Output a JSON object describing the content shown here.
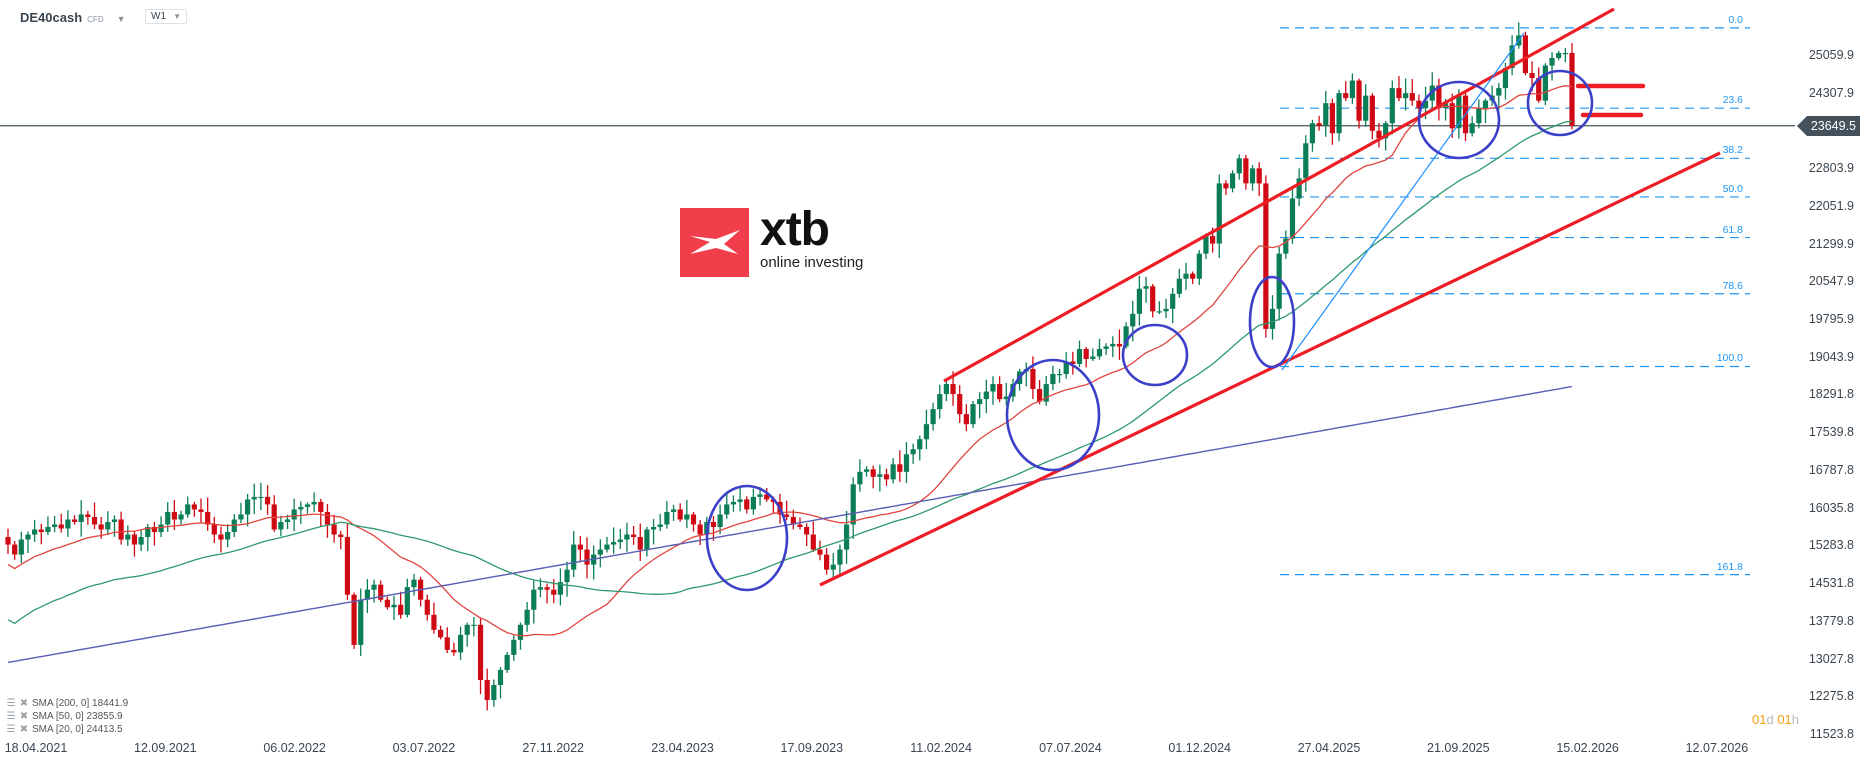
{
  "header": {
    "symbol": "DE40cash",
    "symbol_type": "CFD",
    "timeframe": "W1"
  },
  "logo": {
    "brand": "xtb",
    "tagline": "online investing"
  },
  "current_price": "23649.5",
  "countdown": {
    "days": "01",
    "days_unit": "d",
    "hours": "01",
    "hours_unit": "h"
  },
  "legend": [
    {
      "label": "SMA [200,  0] 18441.9"
    },
    {
      "label": "SMA [50,  0] 23855.9"
    },
    {
      "label": "SMA [20,  0] 24413.5"
    }
  ],
  "colors": {
    "bull": "#0b7e57",
    "bear": "#cf0a14",
    "sma20": "#e0453f",
    "sma50": "#2e9a6c",
    "sma200": "#5a5fb5",
    "trend": "#ee1c25",
    "ellipse": "#3c3fc8",
    "fib": "#2196f3",
    "fib_trend": "#1e90ff",
    "price_line": "#45525c"
  },
  "chart_data": {
    "type": "candlestick",
    "title": "DE40cash CFD W1",
    "xlabel": "",
    "ylabel": "",
    "ylim": [
      11523.8,
      25811.9
    ],
    "y_ticks": [
      "25059.9",
      "24307.9",
      "23649.5",
      "22803.9",
      "22051.9",
      "21299.9",
      "20547.9",
      "19795.9",
      "19043.9",
      "18291.8",
      "17539.8",
      "16787.8",
      "16035.8",
      "15283.8",
      "14531.8",
      "13779.8",
      "13027.8",
      "12275.8",
      "11523.8"
    ],
    "x_ticks": [
      "18.04.2021",
      "12.09.2021",
      "06.02.2022",
      "03.07.2022",
      "27.11.2022",
      "23.04.2023",
      "17.09.2023",
      "11.02.2024",
      "07.07.2024",
      "01.12.2024",
      "27.04.2025",
      "21.09.2025",
      "15.02.2026",
      "12.07.2026"
    ],
    "grid": false,
    "fibonacci": {
      "levels": [
        {
          "label": "0.0",
          "price": 25600
        },
        {
          "label": "23.6",
          "price": 24000
        },
        {
          "label": "38.2",
          "price": 23000
        },
        {
          "label": "50.0",
          "price": 22230
        },
        {
          "label": "61.8",
          "price": 21420
        },
        {
          "label": "78.6",
          "price": 20300
        },
        {
          "label": "100.0",
          "price": 18850
        },
        {
          "label": "161.8",
          "price": 14700
        }
      ]
    },
    "closes": [
      15300,
      15100,
      15400,
      15500,
      15600,
      15550,
      15650,
      15700,
      15620,
      15800,
      15750,
      15900,
      15850,
      15700,
      15600,
      15750,
      15800,
      15400,
      15500,
      15300,
      15450,
      15650,
      15550,
      15700,
      15950,
      15800,
      15900,
      16100,
      16000,
      15950,
      15700,
      15500,
      15400,
      15550,
      15800,
      15900,
      16200,
      16250,
      16250,
      16100,
      15600,
      15750,
      15800,
      16000,
      16050,
      16100,
      16150,
      15950,
      15700,
      15500,
      15450,
      14300,
      13300,
      14200,
      14400,
      14500,
      14200,
      14050,
      14100,
      13900,
      14450,
      14600,
      14200,
      13900,
      13600,
      13450,
      13200,
      13150,
      13500,
      13700,
      13700,
      12600,
      12200,
      12500,
      12800,
      13100,
      13400,
      13700,
      14000,
      14400,
      14450,
      14400,
      14300,
      14550,
      14800,
      15300,
      15200,
      14900,
      15100,
      15200,
      15300,
      15350,
      15400,
      15500,
      15450,
      15200,
      15600,
      15650,
      15700,
      15950,
      16000,
      15800,
      15900,
      15700,
      15500,
      15750,
      15650,
      15900,
      16100,
      16150,
      16200,
      16000,
      16250,
      16300,
      16200,
      16150,
      15900,
      15850,
      15700,
      15650,
      15500,
      15200,
      15100,
      14800,
      14900,
      15200,
      15700,
      16500,
      16750,
      16800,
      16650,
      16700,
      16600,
      16900,
      16750,
      17100,
      17200,
      17400,
      17700,
      18000,
      18300,
      18500,
      18300,
      17900,
      17700,
      18100,
      18200,
      18350,
      18500,
      18200,
      18250,
      18500,
      18750,
      18800,
      18400,
      18150,
      18500,
      18700,
      18700,
      18950,
      18900,
      19200,
      19000,
      19050,
      19200,
      19250,
      19300,
      19250,
      19650,
      19900,
      20400,
      20450,
      19950,
      19950,
      20000,
      20300,
      20600,
      20700,
      20600,
      21100,
      21450,
      21300,
      22500,
      22400,
      22700,
      23000,
      22500,
      22800,
      22500,
      19600,
      20000,
      21100,
      21400,
      22200,
      22600,
      23300,
      23700,
      23650,
      24100,
      23500,
      24300,
      24200,
      24550,
      23750,
      24250,
      23550,
      23400,
      23700,
      24400,
      24200,
      24300,
      24150,
      24000,
      24150,
      24450,
      24000,
      24100,
      23600,
      24250,
      23500,
      23700,
      24000,
      24150,
      24250,
      24400,
      24800,
      25250,
      25450,
      24700,
      24600,
      24150,
      24850,
      25000,
      25100,
      25100,
      23649.5
    ],
    "series_sma": [
      {
        "name": "SMA [200, 0]",
        "value": 18441.9
      },
      {
        "name": "SMA [50, 0]",
        "value": 23855.9
      },
      {
        "name": "SMA [20, 0]",
        "value": 24413.5
      }
    ]
  }
}
